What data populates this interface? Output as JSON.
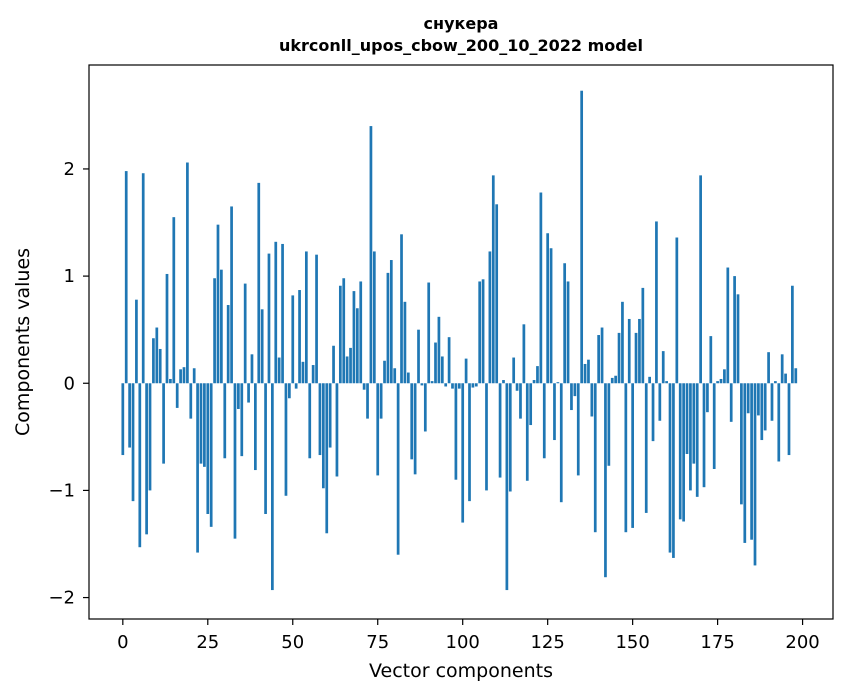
{
  "chart_data": {
    "type": "bar",
    "title_line1": "снукера",
    "title_line2": "ukrconll_upos_cbow_200_10_2022 model",
    "xlabel": "Vector components",
    "ylabel": "Components values",
    "xlim": [
      -9.95,
      208.95
    ],
    "ylim": [
      -2.2,
      2.97
    ],
    "xticks": [
      0,
      25,
      50,
      75,
      100,
      125,
      150,
      175,
      200
    ],
    "xtick_labels": [
      "0",
      "25",
      "50",
      "75",
      "100",
      "125",
      "150",
      "175",
      "200"
    ],
    "yticks": [
      -2,
      -1,
      0,
      1,
      2
    ],
    "ytick_labels": [
      "−2",
      "−1",
      "0",
      "1",
      "2"
    ],
    "grid": false,
    "bar_color": "#1f77b4",
    "bar_width": 0.8,
    "values": [
      -0.67,
      1.98,
      -0.6,
      -1.1,
      0.78,
      -1.53,
      1.96,
      -1.41,
      -1.0,
      0.42,
      0.52,
      0.32,
      -0.75,
      1.02,
      0.04,
      1.55,
      -0.23,
      0.13,
      0.15,
      2.06,
      -0.33,
      0.14,
      -1.58,
      -0.75,
      -0.78,
      -1.22,
      -1.34,
      0.98,
      1.48,
      1.06,
      -0.7,
      0.73,
      1.65,
      -1.45,
      -0.24,
      -0.68,
      0.93,
      -0.18,
      0.27,
      -0.81,
      1.87,
      0.69,
      -1.22,
      1.21,
      -1.93,
      1.32,
      0.24,
      1.3,
      -1.05,
      -0.14,
      0.82,
      -0.05,
      0.87,
      0.2,
      1.23,
      -0.7,
      0.17,
      1.2,
      -0.67,
      -0.98,
      -1.4,
      -0.6,
      0.35,
      -0.87,
      0.91,
      0.98,
      0.25,
      0.33,
      0.86,
      0.7,
      0.95,
      -0.06,
      -0.33,
      2.4,
      1.23,
      -0.86,
      -0.33,
      0.21,
      1.03,
      1.15,
      0.14,
      -1.6,
      1.39,
      0.76,
      0.1,
      -0.71,
      -0.85,
      0.5,
      -0.02,
      -0.45,
      0.94,
      0.02,
      0.38,
      0.62,
      0.25,
      -0.03,
      0.43,
      -0.05,
      -0.9,
      -0.05,
      -1.3,
      0.23,
      -1.1,
      -0.04,
      -0.03,
      0.95,
      0.97,
      -1.0,
      1.23,
      1.94,
      1.67,
      -0.88,
      0.03,
      -1.93,
      -1.01,
      0.24,
      -0.07,
      -0.33,
      0.55,
      -0.91,
      -0.39,
      0.03,
      0.16,
      1.78,
      -0.7,
      1.4,
      1.26,
      -0.53,
      0.01,
      -1.11,
      1.12,
      0.95,
      -0.25,
      -0.12,
      -0.86,
      2.73,
      0.18,
      0.22,
      -0.31,
      -1.39,
      0.45,
      0.52,
      -1.81,
      -0.77,
      0.05,
      0.07,
      0.47,
      0.76,
      -1.39,
      0.6,
      -1.35,
      0.47,
      0.6,
      0.89,
      -1.21,
      0.06,
      -0.54,
      1.51,
      -0.35,
      0.3,
      0.02,
      -1.58,
      -1.63,
      1.36,
      -1.27,
      -1.29,
      -0.66,
      -1.0,
      -0.75,
      -1.06,
      1.94,
      -0.97,
      -0.27,
      0.44,
      -0.8,
      0.02,
      0.04,
      0.13,
      1.08,
      -0.36,
      1.0,
      0.83,
      -1.13,
      -1.49,
      -0.28,
      -1.46,
      -1.7,
      -0.3,
      -0.53,
      -0.44,
      0.29,
      -0.35,
      0.02,
      -0.73,
      0.27,
      0.09,
      -0.67,
      0.91,
      0.14
    ]
  }
}
